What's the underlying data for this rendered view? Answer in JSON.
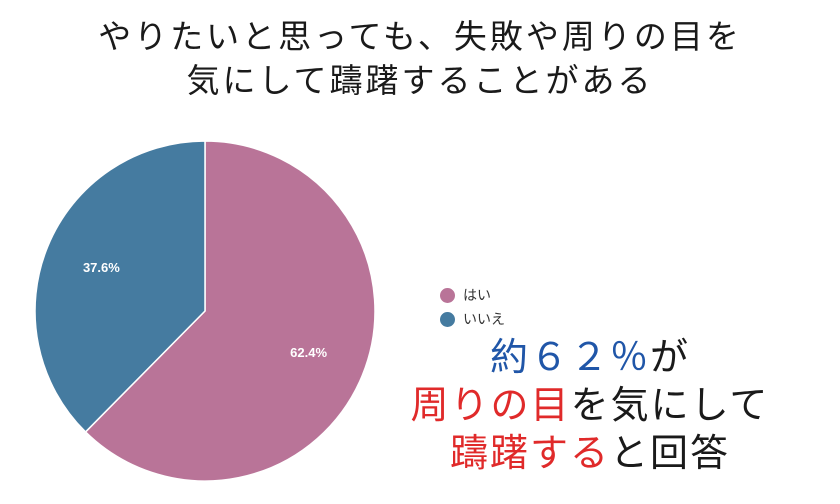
{
  "title_lines": [
    "やりたいと思っても、失敗や周りの目を",
    "気にして躊躇することがある"
  ],
  "colors": {
    "hai": "#b97498",
    "iie": "#457ba0",
    "highlight_blue": "#2056a8",
    "highlight_red": "#e02a2a",
    "text": "#1a1a1a"
  },
  "chart_data": {
    "type": "pie",
    "slices": [
      {
        "label": "はい",
        "value": 62.4,
        "display": "62.4%",
        "color": "#b97498"
      },
      {
        "label": "いいえ",
        "value": 37.6,
        "display": "37.6%",
        "color": "#457ba0"
      }
    ],
    "legend_position": "right",
    "start_angle": "12 o'clock",
    "direction": "clockwise"
  },
  "callout": {
    "line1": [
      {
        "text": "約６２％",
        "color": "#2056a8"
      },
      {
        "text": "が",
        "color": "#1a1a1a"
      }
    ],
    "line2": [
      {
        "text": "周りの目",
        "color": "#e02a2a"
      },
      {
        "text": "を気にして",
        "color": "#1a1a1a"
      }
    ],
    "line3": [
      {
        "text": "躊躇する",
        "color": "#e02a2a"
      },
      {
        "text": "と回答",
        "color": "#1a1a1a"
      }
    ]
  }
}
